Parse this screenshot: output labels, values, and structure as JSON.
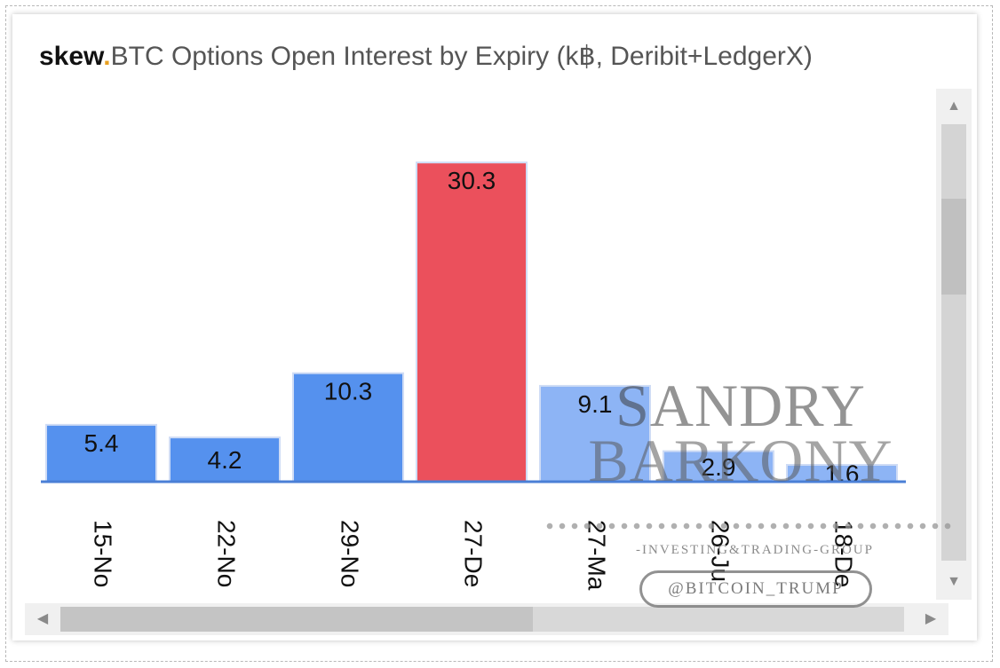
{
  "title": {
    "brand": "skew",
    "dot": ".",
    "text": "BTC Options Open Interest by Expiry (k฿, Deribit+LedgerX)"
  },
  "chart_data": {
    "type": "bar",
    "categories": [
      "15-No",
      "22-No",
      "29-No",
      "27-De",
      "27-Ma",
      "26-Ju",
      "18-De"
    ],
    "values": [
      5.4,
      4.2,
      10.3,
      30.3,
      9.1,
      2.9,
      1.6
    ],
    "data_labels": [
      "5.4",
      "4.2",
      "10.3",
      "30.3",
      "9.1",
      "2.9",
      "1.6"
    ],
    "colors": [
      "#5591ee",
      "#5591ee",
      "#5591ee",
      "#eb505c",
      "#8db4f5",
      "#8db4f5",
      "#8db4f5"
    ],
    "ylim": [
      0,
      32
    ],
    "grid": false,
    "legend": "none"
  },
  "watermark": {
    "name_line1": "SANDRY",
    "name_line2": "BARKONY",
    "subtitle": "-INVESTING&TRADING-GROUP",
    "handle": "@BITCOIN_TRUMP"
  },
  "scrollbars": {
    "up_icon": "▲",
    "down_icon": "▼",
    "left_icon": "◀",
    "right_icon": "▶"
  },
  "colors": {
    "axis": "#4a7fd6",
    "label_text": "#111111",
    "brand_dot": "#e8a020"
  }
}
